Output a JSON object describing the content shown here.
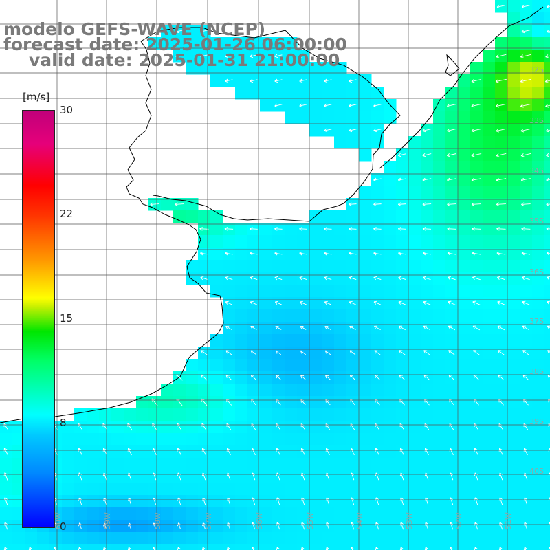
{
  "title": {
    "line1": "modelo GEFS-WAVE (NCEP)",
    "line2": "forecast date: 2025-01-26 06:00:00",
    "line3": "valid date: 2025-01-31 21:00:00"
  },
  "colorbar": {
    "unit": "[m/s]",
    "ticks": [
      {
        "label": "30",
        "value": 30
      },
      {
        "label": "22",
        "value": 22
      },
      {
        "label": "15",
        "value": 15
      },
      {
        "label": "8",
        "value": 8
      },
      {
        "label": "0",
        "value": 0
      }
    ],
    "min": 0,
    "max": 30
  },
  "grid": {
    "lat_labels": [
      "32S",
      "33S",
      "34S",
      "35S",
      "36S",
      "37S",
      "38S",
      "39S",
      "40S"
    ],
    "lon_labels": [
      "60W",
      "59W",
      "58W",
      "57W",
      "56W",
      "55W",
      "54W",
      "53W",
      "52W",
      "51W"
    ]
  },
  "wind_field": {
    "variable": "wind speed",
    "units": "m/s",
    "colors": {
      "land": "#ffffff",
      "coast": "#000000",
      "grid": "#555555",
      "arrow": "#ffffff"
    }
  }
}
